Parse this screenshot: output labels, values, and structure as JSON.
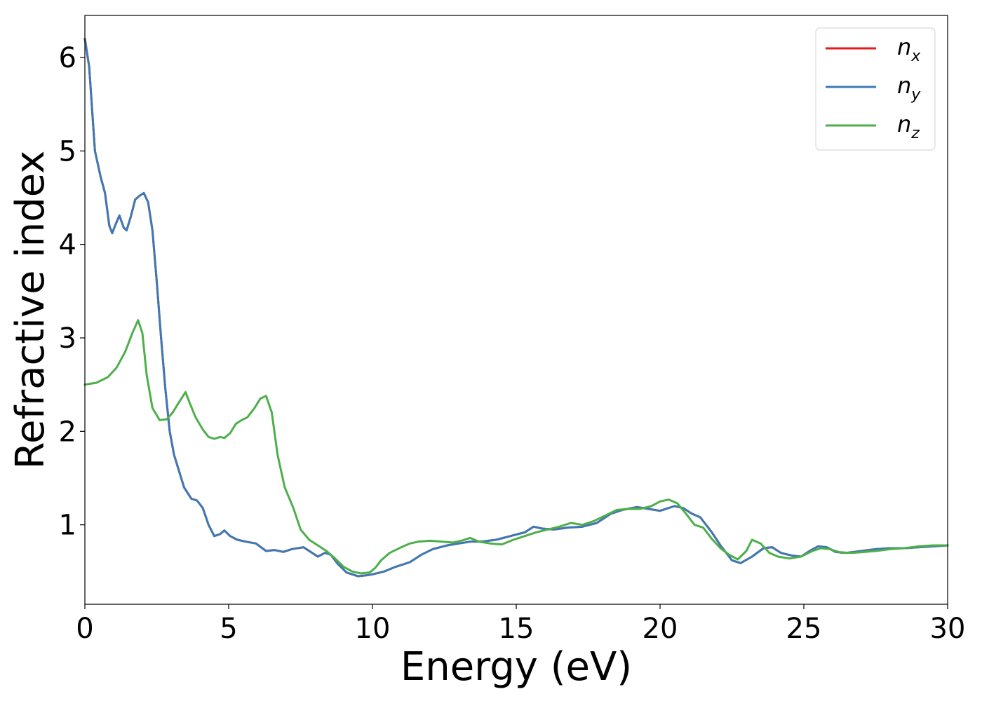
{
  "chart_data": {
    "type": "line",
    "title": "",
    "xlabel": "Energy (eV)",
    "ylabel": "Refractive index",
    "xlim": [
      0,
      30
    ],
    "ylim": [
      0.15,
      6.45
    ],
    "xticks": [
      0,
      5,
      10,
      15,
      20,
      25,
      30
    ],
    "yticks": [
      1,
      2,
      3,
      4,
      5,
      6
    ],
    "xtick_labels": [
      "0",
      "5",
      "10",
      "15",
      "20",
      "25",
      "30"
    ],
    "ytick_labels": [
      "1",
      "2",
      "3",
      "4",
      "5",
      "6"
    ],
    "grid": false,
    "legend_position": "top-right",
    "series": [
      {
        "name": "n_x",
        "legend": {
          "base": "n",
          "sub": "x"
        },
        "color": "#e41a1c",
        "x": [
          0,
          0.15,
          0.35,
          0.55,
          0.7,
          0.85,
          0.95,
          1.05,
          1.2,
          1.35,
          1.45,
          1.6,
          1.75,
          1.9,
          2.05,
          2.2,
          2.35,
          2.5,
          2.65,
          2.8,
          2.95,
          3.1,
          3.25,
          3.45,
          3.7,
          3.9,
          4.1,
          4.3,
          4.5,
          4.7,
          4.85,
          5.05,
          5.3,
          5.6,
          5.95,
          6.3,
          6.6,
          6.9,
          7.2,
          7.6,
          7.9,
          8.1,
          8.35,
          8.55,
          8.8,
          9.1,
          9.5,
          9.8,
          10.0,
          10.4,
          10.8,
          11.3,
          11.7,
          12.1,
          12.6,
          13.0,
          13.4,
          13.8,
          14.3,
          14.8,
          15.3,
          15.6,
          15.9,
          16.3,
          16.8,
          17.3,
          17.8,
          18.3,
          18.7,
          19.2,
          19.6,
          20.0,
          20.5,
          20.8,
          21.1,
          21.4,
          21.8,
          22.1,
          22.5,
          22.8,
          23.2,
          23.6,
          23.9,
          24.2,
          24.6,
          24.9,
          25.2,
          25.5,
          25.8,
          26.1,
          26.5,
          27.0,
          27.5,
          28.0,
          28.5,
          29.0,
          29.5,
          30.0
        ],
        "y": [
          6.2,
          5.9,
          5.0,
          4.72,
          4.55,
          4.2,
          4.12,
          4.2,
          4.31,
          4.18,
          4.15,
          4.3,
          4.48,
          4.52,
          4.55,
          4.45,
          4.15,
          3.6,
          3.0,
          2.45,
          2.0,
          1.75,
          1.6,
          1.4,
          1.28,
          1.26,
          1.18,
          1.0,
          0.88,
          0.9,
          0.94,
          0.88,
          0.84,
          0.82,
          0.8,
          0.72,
          0.73,
          0.71,
          0.74,
          0.76,
          0.7,
          0.66,
          0.7,
          0.68,
          0.58,
          0.49,
          0.45,
          0.46,
          0.47,
          0.5,
          0.55,
          0.6,
          0.68,
          0.74,
          0.78,
          0.8,
          0.82,
          0.82,
          0.84,
          0.88,
          0.92,
          0.98,
          0.96,
          0.95,
          0.97,
          0.98,
          1.02,
          1.12,
          1.16,
          1.19,
          1.17,
          1.15,
          1.2,
          1.18,
          1.12,
          1.08,
          0.92,
          0.78,
          0.62,
          0.59,
          0.66,
          0.75,
          0.76,
          0.7,
          0.67,
          0.66,
          0.72,
          0.77,
          0.76,
          0.71,
          0.7,
          0.72,
          0.74,
          0.75,
          0.75,
          0.76,
          0.77,
          0.78
        ]
      },
      {
        "name": "n_y",
        "legend": {
          "base": "n",
          "sub": "y"
        },
        "color": "#3d7ab5",
        "x": [
          0,
          0.15,
          0.35,
          0.55,
          0.7,
          0.85,
          0.95,
          1.05,
          1.2,
          1.35,
          1.45,
          1.6,
          1.75,
          1.9,
          2.05,
          2.2,
          2.35,
          2.5,
          2.65,
          2.8,
          2.95,
          3.1,
          3.25,
          3.45,
          3.7,
          3.9,
          4.1,
          4.3,
          4.5,
          4.7,
          4.85,
          5.05,
          5.3,
          5.6,
          5.95,
          6.3,
          6.6,
          6.9,
          7.2,
          7.6,
          7.9,
          8.1,
          8.35,
          8.55,
          8.8,
          9.1,
          9.5,
          9.8,
          10.0,
          10.4,
          10.8,
          11.3,
          11.7,
          12.1,
          12.6,
          13.0,
          13.4,
          13.8,
          14.3,
          14.8,
          15.3,
          15.6,
          15.9,
          16.3,
          16.8,
          17.3,
          17.8,
          18.3,
          18.7,
          19.2,
          19.6,
          20.0,
          20.5,
          20.8,
          21.1,
          21.4,
          21.8,
          22.1,
          22.5,
          22.8,
          23.2,
          23.6,
          23.9,
          24.2,
          24.6,
          24.9,
          25.2,
          25.5,
          25.8,
          26.1,
          26.5,
          27.0,
          27.5,
          28.0,
          28.5,
          29.0,
          29.5,
          30.0
        ],
        "y": [
          6.2,
          5.9,
          5.0,
          4.72,
          4.55,
          4.2,
          4.12,
          4.2,
          4.31,
          4.18,
          4.15,
          4.3,
          4.48,
          4.52,
          4.55,
          4.45,
          4.15,
          3.6,
          3.0,
          2.45,
          2.0,
          1.75,
          1.6,
          1.4,
          1.28,
          1.26,
          1.18,
          1.0,
          0.88,
          0.9,
          0.94,
          0.88,
          0.84,
          0.82,
          0.8,
          0.72,
          0.73,
          0.71,
          0.74,
          0.76,
          0.7,
          0.66,
          0.7,
          0.68,
          0.58,
          0.49,
          0.45,
          0.46,
          0.47,
          0.5,
          0.55,
          0.6,
          0.68,
          0.74,
          0.78,
          0.8,
          0.82,
          0.82,
          0.84,
          0.88,
          0.92,
          0.98,
          0.96,
          0.95,
          0.97,
          0.98,
          1.02,
          1.12,
          1.16,
          1.19,
          1.17,
          1.15,
          1.2,
          1.18,
          1.12,
          1.08,
          0.92,
          0.78,
          0.62,
          0.59,
          0.66,
          0.75,
          0.76,
          0.7,
          0.67,
          0.66,
          0.72,
          0.77,
          0.76,
          0.71,
          0.7,
          0.72,
          0.74,
          0.75,
          0.75,
          0.76,
          0.77,
          0.78
        ]
      },
      {
        "name": "n_z",
        "legend": {
          "base": "n",
          "sub": "z"
        },
        "color": "#4daf4a",
        "x": [
          0,
          0.4,
          0.8,
          1.1,
          1.4,
          1.65,
          1.85,
          2.0,
          2.15,
          2.35,
          2.6,
          2.85,
          3.05,
          3.25,
          3.5,
          3.65,
          3.85,
          4.1,
          4.3,
          4.5,
          4.7,
          4.85,
          5.05,
          5.25,
          5.45,
          5.65,
          5.9,
          6.1,
          6.3,
          6.5,
          6.7,
          6.95,
          7.25,
          7.5,
          7.8,
          8.1,
          8.4,
          8.7,
          9.0,
          9.3,
          9.6,
          9.9,
          10.1,
          10.3,
          10.6,
          11.0,
          11.3,
          11.6,
          12.0,
          12.4,
          12.8,
          13.1,
          13.4,
          13.7,
          14.1,
          14.5,
          14.9,
          15.3,
          15.7,
          16.1,
          16.5,
          16.9,
          17.3,
          17.7,
          18.1,
          18.5,
          18.9,
          19.3,
          19.7,
          20.0,
          20.3,
          20.6,
          20.9,
          21.2,
          21.5,
          21.8,
          22.1,
          22.4,
          22.7,
          23.0,
          23.2,
          23.5,
          23.8,
          24.1,
          24.5,
          24.9,
          25.3,
          25.6,
          25.9,
          26.3,
          26.7,
          27.1,
          27.5,
          28.0,
          28.5,
          29.0,
          29.5,
          30.0
        ],
        "y": [
          2.5,
          2.52,
          2.58,
          2.68,
          2.85,
          3.05,
          3.19,
          3.05,
          2.6,
          2.25,
          2.12,
          2.13,
          2.2,
          2.3,
          2.42,
          2.3,
          2.15,
          2.02,
          1.94,
          1.92,
          1.94,
          1.93,
          1.98,
          2.08,
          2.12,
          2.15,
          2.25,
          2.35,
          2.38,
          2.2,
          1.75,
          1.4,
          1.18,
          0.95,
          0.84,
          0.78,
          0.72,
          0.64,
          0.55,
          0.5,
          0.48,
          0.49,
          0.54,
          0.62,
          0.7,
          0.76,
          0.8,
          0.82,
          0.83,
          0.82,
          0.81,
          0.83,
          0.86,
          0.82,
          0.8,
          0.79,
          0.84,
          0.88,
          0.92,
          0.95,
          0.98,
          1.02,
          1.0,
          1.04,
          1.1,
          1.16,
          1.17,
          1.17,
          1.2,
          1.25,
          1.27,
          1.23,
          1.12,
          1.0,
          0.97,
          0.85,
          0.75,
          0.68,
          0.63,
          0.72,
          0.84,
          0.8,
          0.7,
          0.66,
          0.64,
          0.66,
          0.72,
          0.75,
          0.74,
          0.7,
          0.7,
          0.71,
          0.72,
          0.74,
          0.75,
          0.77,
          0.78,
          0.78
        ]
      }
    ]
  }
}
